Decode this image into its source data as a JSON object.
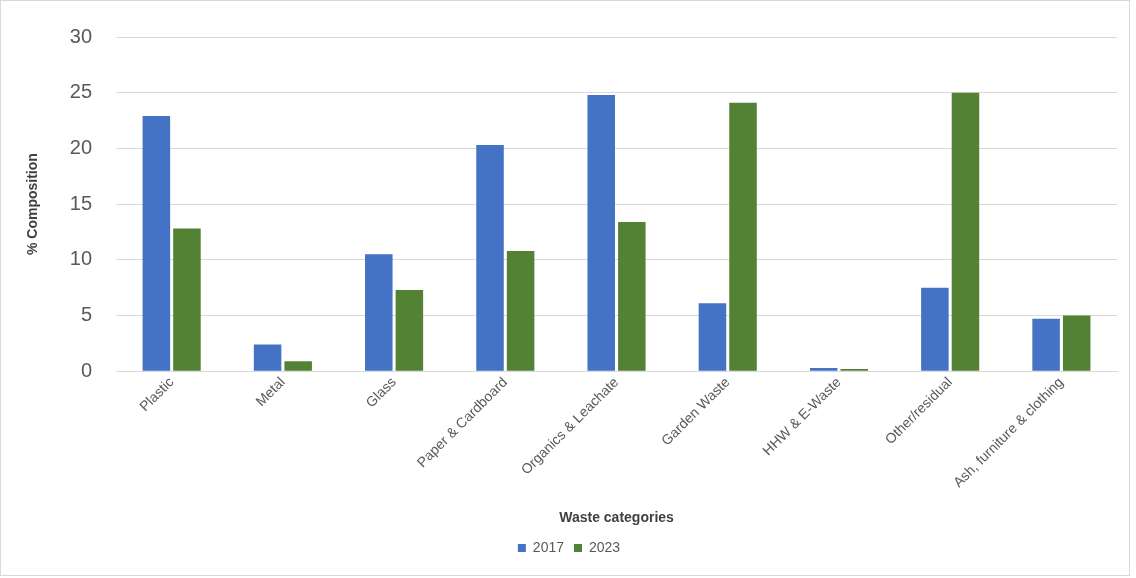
{
  "chart_data": {
    "type": "bar",
    "xlabel": "Waste categories",
    "ylabel": "% Composition",
    "categories": [
      "Plastic",
      "Metal",
      "Glass",
      "Paper & Cardboard",
      "Organics & Leachate",
      "Garden Waste",
      "HHW & E-Waste",
      "Other/residual",
      "Ash, furniture & clothing"
    ],
    "series": [
      {
        "name": "2017",
        "color": "#4472c4",
        "values": [
          22.9,
          2.4,
          10.5,
          20.3,
          24.8,
          6.1,
          0.3,
          7.5,
          4.7
        ]
      },
      {
        "name": "2023",
        "color": "#548235",
        "values": [
          12.8,
          0.9,
          7.3,
          10.8,
          13.4,
          24.1,
          0.2,
          25.0,
          5.0
        ]
      }
    ],
    "ylim": [
      0,
      30
    ],
    "yticks": [
      0,
      5,
      10,
      15,
      20,
      25,
      30
    ],
    "grid": "y",
    "legend": "bottom"
  }
}
